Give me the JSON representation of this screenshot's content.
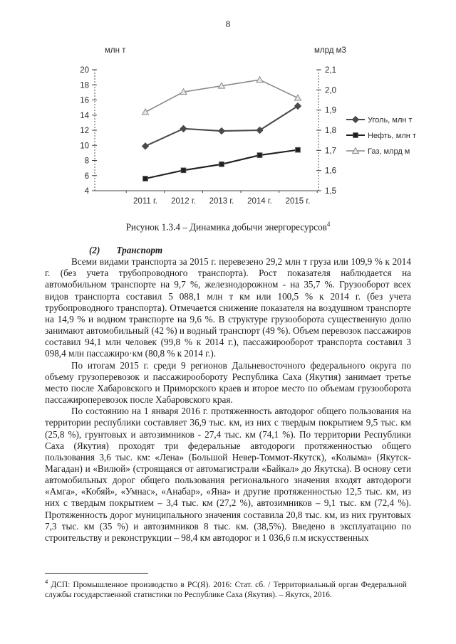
{
  "page": {
    "number": "8"
  },
  "caption": {
    "text": "Рисунок 1.3.4 – Динамика добычи энергоресурсов",
    "footnote_ref": "4"
  },
  "section": {
    "number": "(2)",
    "title": "Транспорт"
  },
  "paragraphs": [
    "Всеми видами транспорта за 2015 г. перевезено 29,2 млн т груза или 109,9 % к 2014 г. (без учета трубопроводного транспорта). Рост показателя наблюдается на автомобильном транспорте на 9,7 %, железнодорожном - на 35,7 %. Грузооборот всех видов транспорта составил 5 088,1 млн т км или 100,5 % к 2014 г. (без учета трубопроводного транспорта). Отмечается снижение показателя на воздушном транспорте на 14,9 % и водном транспорте на 9,6 %. В структуре грузооборота существенную долю занимают автомобильный (42 %) и водный транспорт (49 %). Объем перевозок пассажиров составил 94,1 млн человек (99,8 % к 2014 г.), пассажирооборот транспорта составил 3 098,4 млн пассажиро·км (80,8 % к 2014 г.).",
    "По итогам 2015 г. среди 9 регионов Дальневосточного федерального округа по объему грузоперевозок и пассажирообороту Республика Саха (Якутия) занимает третье место после Хабаровского и Приморского краев и второе место по объемам грузооборота пассажироперевозок после Хабаровского края.",
    "По состоянию на 1 января 2016 г. протяженность автодорог общего пользования на территории республики составляет 36,9 тыс. км, из них с твердым покрытием 9,5 тыс. км (25,8 %), грунтовых и автозимников - 27,4 тыс. км (74,1 %). По территории Республики Саха (Якутия) проходят три федеральные автодороги протяженностью общего пользования 3,6 тыс. км: «Лена» (Большой Невер-Томмот-Якутск), «Колыма» (Якутск-Магадан) и «Вилюй» (строящаяся от автомагистрали «Байкал» до Якутска). В основу сети автомобильных дорог общего пользования регионального значения входят автодороги «Амга», «Кобяй», «Умнас», «Анабар», «Яна» и другие протяженностью 12,5 тыс. км, из них с твердым покрытием – 3,4 тыс. км (27,2 %), автозимников – 9,1 тыс. км (72,4 %). Протяженность дорог муниципального значения составила 20,8 тыс. км, из них грунтовых 7,3 тыс. км (35 %) и автозимников 8 тыс. км. (38,5%). Введено в эксплуатацию по строительству и реконструкции – 98,4 км автодорог и 1 036,6 п.м искусственных"
  ],
  "footnote": {
    "ref": "4",
    "text": "ДСП: Промышленное производство в РС(Я). 2016: Стат. сб. / Территориальный орган Федеральной службы государственной статистики по Республике Саха (Якутия). – Якутск, 2016."
  },
  "chart_data": {
    "type": "line",
    "title": "Рисунок 1.3.4 – Динамика добычи энергоресурсов",
    "categories": [
      "2011 г.",
      "2012 г.",
      "2013 г.",
      "2014 г.",
      "2015 г."
    ],
    "left_axis": {
      "title": "млн т",
      "min": 4,
      "max": 20,
      "step": 2,
      "ticks": [
        "20",
        "18",
        "16",
        "14",
        "12",
        "10",
        "8",
        "6",
        "4"
      ]
    },
    "right_axis": {
      "title": "млрд м3",
      "min": 1.5,
      "max": 2.1,
      "step": 0.1,
      "ticks": [
        "2,1",
        "2,0",
        "1,9",
        "1,8",
        "1,7",
        "1,6",
        "1,5"
      ]
    },
    "legend_position": "right",
    "grid": false,
    "series": [
      {
        "name": "Уголь, млн т",
        "axis": "left",
        "marker": "diamond",
        "color": "#4a4a4a",
        "values": [
          9.9,
          12.2,
          11.9,
          12.0,
          15.2
        ]
      },
      {
        "name": "Нефть, млн т",
        "axis": "left",
        "marker": "square",
        "color": "#1f1f1f",
        "values": [
          5.6,
          6.7,
          7.5,
          8.7,
          9.4
        ]
      },
      {
        "name": "Газ, млрд м",
        "axis": "right",
        "marker": "triangle",
        "color": "#8a8a8a",
        "values": [
          1.89,
          1.99,
          2.02,
          2.05,
          1.96
        ]
      }
    ]
  }
}
